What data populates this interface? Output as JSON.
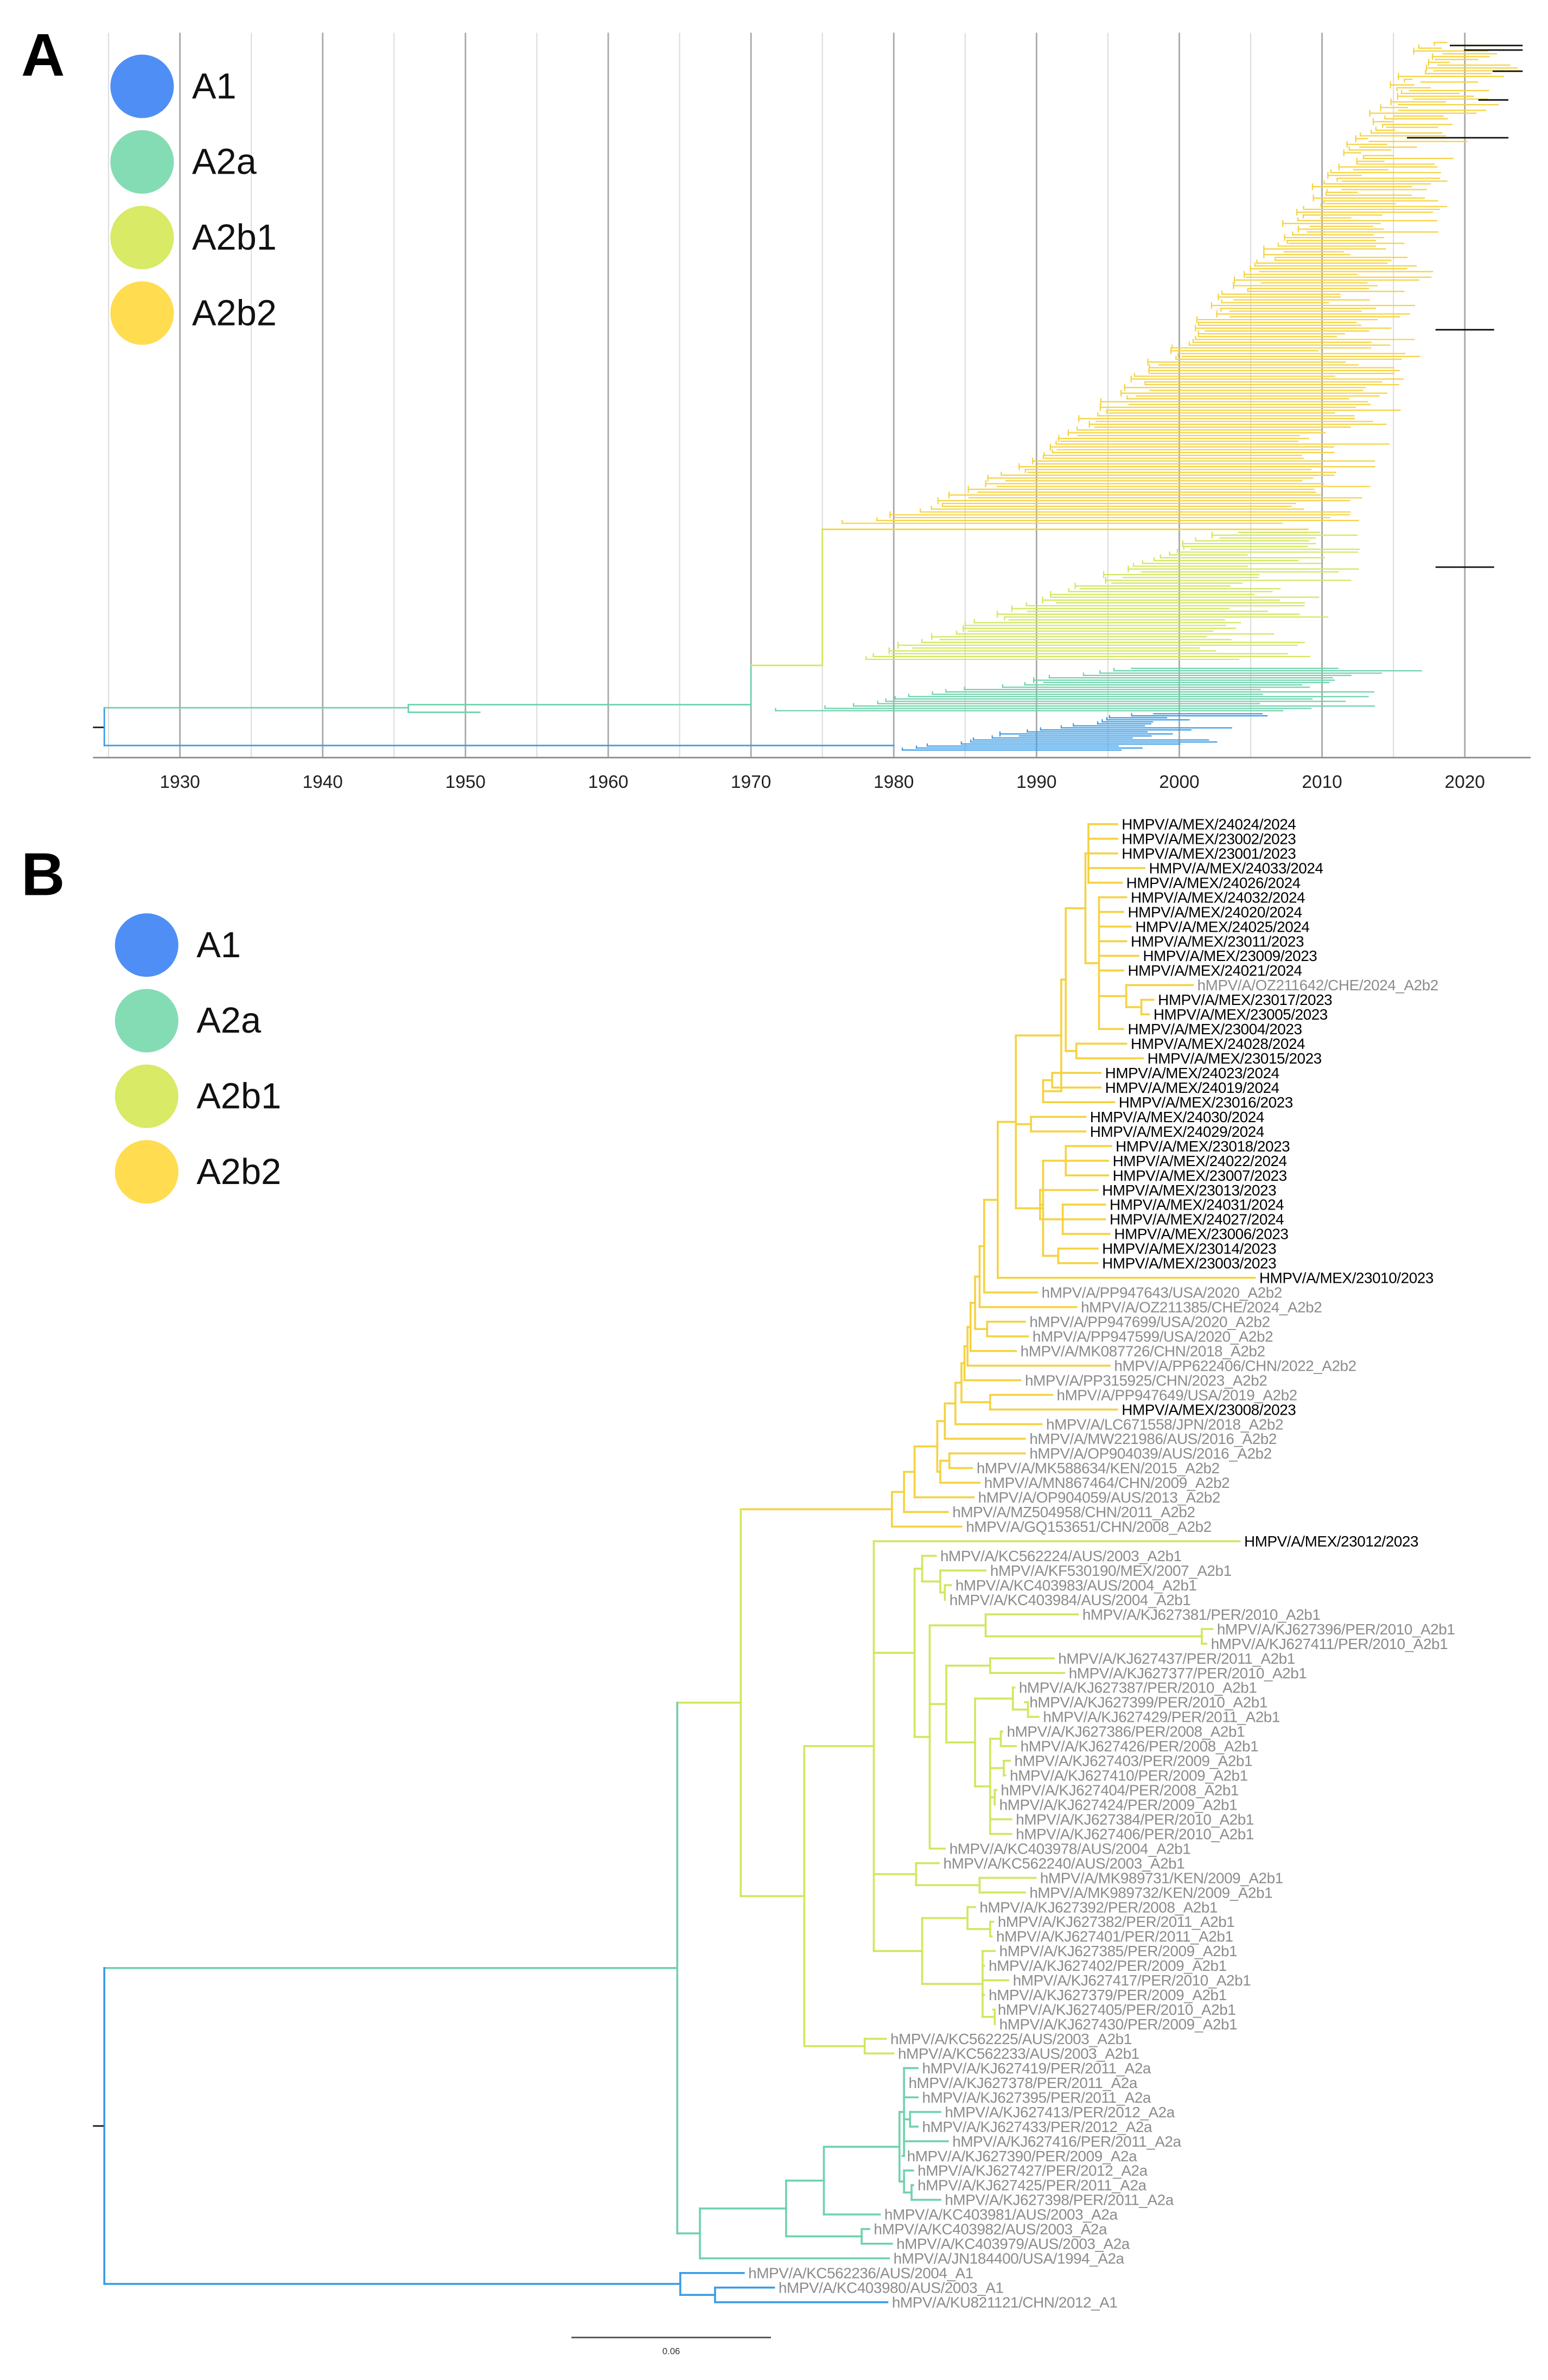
{
  "colors": {
    "A1": "#4f8ff5",
    "A2a": "#84dcb5",
    "A2b1": "#d8ea66",
    "A2b2": "#ffdc50",
    "A1_branch": "#3a9de6",
    "A2a_branch": "#6fd2ac",
    "A2b1_branch": "#d2e65e",
    "A2b2_branch": "#f5d241",
    "query_label": "#000000",
    "reference_label": "#8c8c8c"
  },
  "panel_a": {
    "letter": "A",
    "legend": [
      {
        "clade": "A1",
        "label": "A1"
      },
      {
        "clade": "A2a",
        "label": "A2a"
      },
      {
        "clade": "A2b1",
        "label": "A2b1"
      },
      {
        "clade": "A2b2",
        "label": "A2b2"
      }
    ],
    "axis_ticks": [
      "1930",
      "1940",
      "1950",
      "1960",
      "1970",
      "1980",
      "1990",
      "2000",
      "2010",
      "2020"
    ]
  },
  "panel_b": {
    "letter": "B",
    "legend": [
      {
        "clade": "A1",
        "label": "A1"
      },
      {
        "clade": "A2a",
        "label": "A2a"
      },
      {
        "clade": "A2b1",
        "label": "A2b1"
      },
      {
        "clade": "A2b2",
        "label": "A2b2"
      }
    ],
    "scale_bar_label": "0.06",
    "tips": [
      {
        "label": "HMPV/A/MEX/24024/2024",
        "clade": "A2b2"
      },
      {
        "label": "HMPV/A/MEX/23002/2023",
        "clade": "A2b2"
      },
      {
        "label": "HMPV/A/MEX/23001/2023",
        "clade": "A2b2"
      },
      {
        "label": "HMPV/A/MEX/24033/2024",
        "clade": "A2b2"
      },
      {
        "label": "HMPV/A/MEX/24026/2024",
        "clade": "A2b2"
      },
      {
        "label": "HMPV/A/MEX/24032/2024",
        "clade": "A2b2"
      },
      {
        "label": "HMPV/A/MEX/24020/2024",
        "clade": "A2b2"
      },
      {
        "label": "HMPV/A/MEX/24025/2024",
        "clade": "A2b2"
      },
      {
        "label": "HMPV/A/MEX/23011/2023",
        "clade": "A2b2"
      },
      {
        "label": "HMPV/A/MEX/23009/2023",
        "clade": "A2b2"
      },
      {
        "label": "HMPV/A/MEX/24021/2024",
        "clade": "A2b2"
      },
      {
        "label": "hMPV/A/OZ211642/CHE/2024_A2b2",
        "clade": "A2b2"
      },
      {
        "label": "HMPV/A/MEX/23017/2023",
        "clade": "A2b2"
      },
      {
        "label": "HMPV/A/MEX/23005/2023",
        "clade": "A2b2"
      },
      {
        "label": "HMPV/A/MEX/23004/2023",
        "clade": "A2b2"
      },
      {
        "label": "HMPV/A/MEX/24028/2024",
        "clade": "A2b2"
      },
      {
        "label": "HMPV/A/MEX/23015/2023",
        "clade": "A2b2"
      },
      {
        "label": "HMPV/A/MEX/24023/2024",
        "clade": "A2b2"
      },
      {
        "label": "HMPV/A/MEX/24019/2024",
        "clade": "A2b2"
      },
      {
        "label": "HMPV/A/MEX/23016/2023",
        "clade": "A2b2"
      },
      {
        "label": "HMPV/A/MEX/24030/2024",
        "clade": "A2b2"
      },
      {
        "label": "HMPV/A/MEX/24029/2024",
        "clade": "A2b2"
      },
      {
        "label": "HMPV/A/MEX/23018/2023",
        "clade": "A2b2"
      },
      {
        "label": "HMPV/A/MEX/24022/2024",
        "clade": "A2b2"
      },
      {
        "label": "HMPV/A/MEX/23007/2023",
        "clade": "A2b2"
      },
      {
        "label": "HMPV/A/MEX/23013/2023",
        "clade": "A2b2"
      },
      {
        "label": "HMPV/A/MEX/24031/2024",
        "clade": "A2b2"
      },
      {
        "label": "HMPV/A/MEX/24027/2024",
        "clade": "A2b2"
      },
      {
        "label": "HMPV/A/MEX/23006/2023",
        "clade": "A2b2"
      },
      {
        "label": "HMPV/A/MEX/23014/2023",
        "clade": "A2b2"
      },
      {
        "label": "HMPV/A/MEX/23003/2023",
        "clade": "A2b2"
      },
      {
        "label": "HMPV/A/MEX/23010/2023",
        "clade": "A2b2"
      },
      {
        "label": "hMPV/A/PP947643/USA/2020_A2b2",
        "clade": "A2b2"
      },
      {
        "label": "hMPV/A/OZ211385/CHE/2024_A2b2",
        "clade": "A2b2"
      },
      {
        "label": "hMPV/A/PP947699/USA/2020_A2b2",
        "clade": "A2b2"
      },
      {
        "label": "hMPV/A/PP947599/USA/2020_A2b2",
        "clade": "A2b2"
      },
      {
        "label": "hMPV/A/MK087726/CHN/2018_A2b2",
        "clade": "A2b2"
      },
      {
        "label": "hMPV/A/PP622406/CHN/2022_A2b2",
        "clade": "A2b2"
      },
      {
        "label": "hMPV/A/PP315925/CHN/2023_A2b2",
        "clade": "A2b2"
      },
      {
        "label": "hMPV/A/PP947649/USA/2019_A2b2",
        "clade": "A2b2"
      },
      {
        "label": "HMPV/A/MEX/23008/2023",
        "clade": "A2b2"
      },
      {
        "label": "hMPV/A/LC671558/JPN/2018_A2b2",
        "clade": "A2b2"
      },
      {
        "label": "hMPV/A/MW221986/AUS/2016_A2b2",
        "clade": "A2b2"
      },
      {
        "label": "hMPV/A/OP904039/AUS/2016_A2b2",
        "clade": "A2b2"
      },
      {
        "label": "hMPV/A/MK588634/KEN/2015_A2b2",
        "clade": "A2b2"
      },
      {
        "label": "hMPV/A/MN867464/CHN/2009_A2b2",
        "clade": "A2b2"
      },
      {
        "label": "hMPV/A/OP904059/AUS/2013_A2b2",
        "clade": "A2b2"
      },
      {
        "label": "hMPV/A/MZ504958/CHN/2011_A2b2",
        "clade": "A2b2"
      },
      {
        "label": "hMPV/A/GQ153651/CHN/2008_A2b2",
        "clade": "A2b2"
      },
      {
        "label": "HMPV/A/MEX/23012/2023",
        "clade": "A2b1"
      },
      {
        "label": "hMPV/A/KC562224/AUS/2003_A2b1",
        "clade": "A2b1"
      },
      {
        "label": "hMPV/A/KF530190/MEX/2007_A2b1",
        "clade": "A2b1"
      },
      {
        "label": "hMPV/A/KC403983/AUS/2004_A2b1",
        "clade": "A2b1"
      },
      {
        "label": "hMPV/A/KC403984/AUS/2004_A2b1",
        "clade": "A2b1"
      },
      {
        "label": "hMPV/A/KJ627381/PER/2010_A2b1",
        "clade": "A2b1"
      },
      {
        "label": "hMPV/A/KJ627396/PER/2010_A2b1",
        "clade": "A2b1"
      },
      {
        "label": "hMPV/A/KJ627411/PER/2010_A2b1",
        "clade": "A2b1"
      },
      {
        "label": "hMPV/A/KJ627437/PER/2011_A2b1",
        "clade": "A2b1"
      },
      {
        "label": "hMPV/A/KJ627377/PER/2010_A2b1",
        "clade": "A2b1"
      },
      {
        "label": "hMPV/A/KJ627387/PER/2010_A2b1",
        "clade": "A2b1"
      },
      {
        "label": "hMPV/A/KJ627399/PER/2010_A2b1",
        "clade": "A2b1"
      },
      {
        "label": "hMPV/A/KJ627429/PER/2011_A2b1",
        "clade": "A2b1"
      },
      {
        "label": "hMPV/A/KJ627386/PER/2008_A2b1",
        "clade": "A2b1"
      },
      {
        "label": "hMPV/A/KJ627426/PER/2008_A2b1",
        "clade": "A2b1"
      },
      {
        "label": "hMPV/A/KJ627403/PER/2009_A2b1",
        "clade": "A2b1"
      },
      {
        "label": "hMPV/A/KJ627410/PER/2009_A2b1",
        "clade": "A2b1"
      },
      {
        "label": "hMPV/A/KJ627404/PER/2008_A2b1",
        "clade": "A2b1"
      },
      {
        "label": "hMPV/A/KJ627424/PER/2009_A2b1",
        "clade": "A2b1"
      },
      {
        "label": "hMPV/A/KJ627384/PER/2010_A2b1",
        "clade": "A2b1"
      },
      {
        "label": "hMPV/A/KJ627406/PER/2010_A2b1",
        "clade": "A2b1"
      },
      {
        "label": "hMPV/A/KC403978/AUS/2004_A2b1",
        "clade": "A2b1"
      },
      {
        "label": "hMPV/A/KC562240/AUS/2003_A2b1",
        "clade": "A2b1"
      },
      {
        "label": "hMPV/A/MK989731/KEN/2009_A2b1",
        "clade": "A2b1"
      },
      {
        "label": "hMPV/A/MK989732/KEN/2009_A2b1",
        "clade": "A2b1"
      },
      {
        "label": "hMPV/A/KJ627392/PER/2008_A2b1",
        "clade": "A2b1"
      },
      {
        "label": "hMPV/A/KJ627382/PER/2011_A2b1",
        "clade": "A2b1"
      },
      {
        "label": "hMPV/A/KJ627401/PER/2011_A2b1",
        "clade": "A2b1"
      },
      {
        "label": "hMPV/A/KJ627385/PER/2009_A2b1",
        "clade": "A2b1"
      },
      {
        "label": "hMPV/A/KJ627402/PER/2009_A2b1",
        "clade": "A2b1"
      },
      {
        "label": "hMPV/A/KJ627417/PER/2010_A2b1",
        "clade": "A2b1"
      },
      {
        "label": "hMPV/A/KJ627379/PER/2009_A2b1",
        "clade": "A2b1"
      },
      {
        "label": "hMPV/A/KJ627405/PER/2010_A2b1",
        "clade": "A2b1"
      },
      {
        "label": "hMPV/A/KJ627430/PER/2009_A2b1",
        "clade": "A2b1"
      },
      {
        "label": "hMPV/A/KC562225/AUS/2003_A2b1",
        "clade": "A2b1"
      },
      {
        "label": "hMPV/A/KC562233/AUS/2003_A2b1",
        "clade": "A2b1"
      },
      {
        "label": "hMPV/A/KJ627419/PER/2011_A2a",
        "clade": "A2a"
      },
      {
        "label": "hMPV/A/KJ627378/PER/2011_A2a",
        "clade": "A2a"
      },
      {
        "label": "hMPV/A/KJ627395/PER/2011_A2a",
        "clade": "A2a"
      },
      {
        "label": "hMPV/A/KJ627413/PER/2012_A2a",
        "clade": "A2a"
      },
      {
        "label": "hMPV/A/KJ627433/PER/2012_A2a",
        "clade": "A2a"
      },
      {
        "label": "hMPV/A/KJ627416/PER/2011_A2a",
        "clade": "A2a"
      },
      {
        "label": "hMPV/A/KJ627390/PER/2009_A2a",
        "clade": "A2a"
      },
      {
        "label": "hMPV/A/KJ627427/PER/2012_A2a",
        "clade": "A2a"
      },
      {
        "label": "hMPV/A/KJ627425/PER/2011_A2a",
        "clade": "A2a"
      },
      {
        "label": "hMPV/A/KJ627398/PER/2011_A2a",
        "clade": "A2a"
      },
      {
        "label": "hMPV/A/KC403981/AUS/2003_A2a",
        "clade": "A2a"
      },
      {
        "label": "hMPV/A/KC403982/AUS/2003_A2a",
        "clade": "A2a"
      },
      {
        "label": "hMPV/A/KC403979/AUS/2003_A2a",
        "clade": "A2a"
      },
      {
        "label": "hMPV/A/JN184400/USA/1994_A2a",
        "clade": "A2a"
      },
      {
        "label": "hMPV/A/KC562236/AUS/2004_A1",
        "clade": "A1"
      },
      {
        "label": "hMPV/A/KC403980/AUS/2003_A1",
        "clade": "A1"
      },
      {
        "label": "hMPV/A/KU821121/CHN/2012_A1",
        "clade": "A1"
      }
    ]
  }
}
